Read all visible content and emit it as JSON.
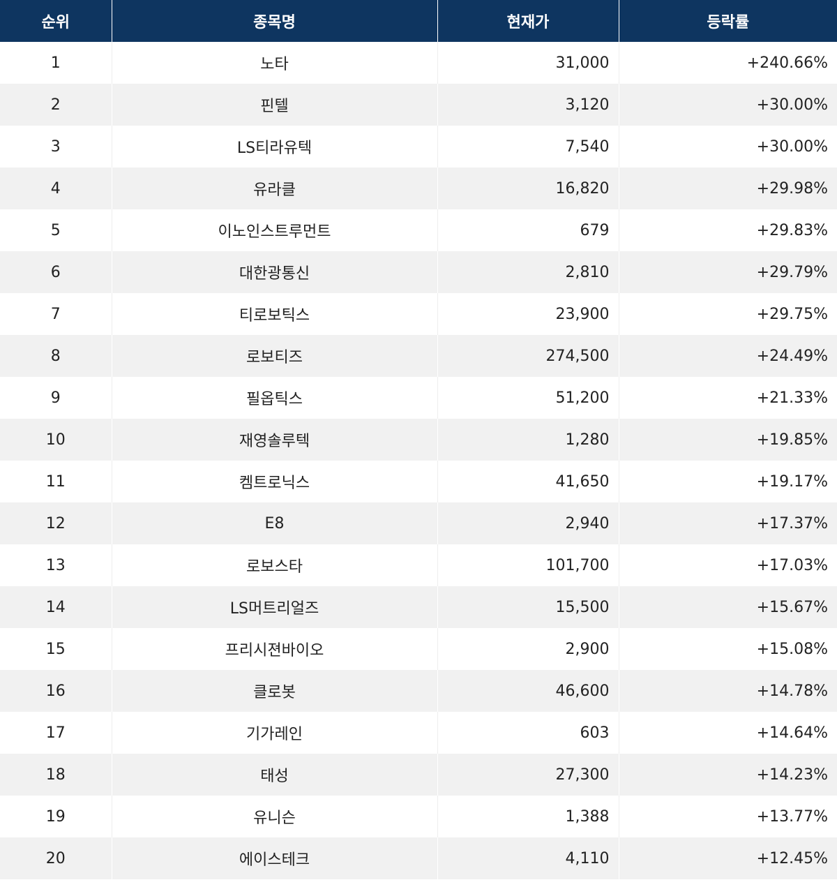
{
  "table": {
    "headers": {
      "rank": "순위",
      "name": "종목명",
      "price": "현재가",
      "rate": "등락률"
    },
    "rows": [
      {
        "rank": "1",
        "name": "노타",
        "price": "31,000",
        "rate": "+240.66%"
      },
      {
        "rank": "2",
        "name": "핀텔",
        "price": "3,120",
        "rate": "+30.00%"
      },
      {
        "rank": "3",
        "name": "LS티라유텍",
        "price": "7,540",
        "rate": "+30.00%"
      },
      {
        "rank": "4",
        "name": "유라클",
        "price": "16,820",
        "rate": "+29.98%"
      },
      {
        "rank": "5",
        "name": "이노인스트루먼트",
        "price": "679",
        "rate": "+29.83%"
      },
      {
        "rank": "6",
        "name": "대한광통신",
        "price": "2,810",
        "rate": "+29.79%"
      },
      {
        "rank": "7",
        "name": "티로보틱스",
        "price": "23,900",
        "rate": "+29.75%"
      },
      {
        "rank": "8",
        "name": "로보티즈",
        "price": "274,500",
        "rate": "+24.49%"
      },
      {
        "rank": "9",
        "name": "필옵틱스",
        "price": "51,200",
        "rate": "+21.33%"
      },
      {
        "rank": "10",
        "name": "재영솔루텍",
        "price": "1,280",
        "rate": "+19.85%"
      },
      {
        "rank": "11",
        "name": "켐트로닉스",
        "price": "41,650",
        "rate": "+19.17%"
      },
      {
        "rank": "12",
        "name": "E8",
        "price": "2,940",
        "rate": "+17.37%"
      },
      {
        "rank": "13",
        "name": "로보스타",
        "price": "101,700",
        "rate": "+17.03%"
      },
      {
        "rank": "14",
        "name": "LS머트리얼즈",
        "price": "15,500",
        "rate": "+15.67%"
      },
      {
        "rank": "15",
        "name": "프리시젼바이오",
        "price": "2,900",
        "rate": "+15.08%"
      },
      {
        "rank": "16",
        "name": "클로봇",
        "price": "46,600",
        "rate": "+14.78%"
      },
      {
        "rank": "17",
        "name": "기가레인",
        "price": "603",
        "rate": "+14.64%"
      },
      {
        "rank": "18",
        "name": "태성",
        "price": "27,300",
        "rate": "+14.23%"
      },
      {
        "rank": "19",
        "name": "유니슨",
        "price": "1,388",
        "rate": "+13.77%"
      },
      {
        "rank": "20",
        "name": "에이스테크",
        "price": "4,110",
        "rate": "+12.45%"
      }
    ]
  },
  "colors": {
    "header_bg": "#0e3560",
    "header_text": "#ffffff",
    "row_alt_bg": "#f1f1f1"
  }
}
